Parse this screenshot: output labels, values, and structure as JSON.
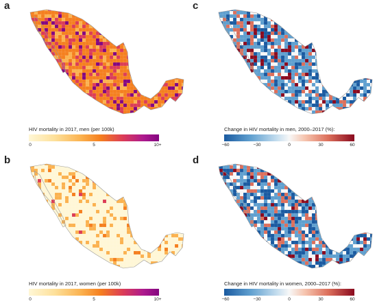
{
  "panels": [
    {
      "label": "a",
      "legend_title": "HIV mortality in 2017, men (per 100k)",
      "ticks": [
        "0",
        "5",
        "10+"
      ],
      "scale": "sequential",
      "colors": [
        "#fff7d6",
        "#fbb24f",
        "#f57f1f",
        "#dc3d56",
        "#840680"
      ]
    },
    {
      "label": "b",
      "legend_title": "HIV mortality in 2017, women (per 100k)",
      "ticks": [
        "0",
        "5",
        "10+"
      ],
      "scale": "sequential",
      "colors": [
        "#fff7d6",
        "#fbb24f",
        "#f57f1f",
        "#dc3d56",
        "#840680"
      ]
    },
    {
      "label": "c",
      "legend_title": "Change in HIV mortality in men, 2000–2017 (%):",
      "ticks": [
        "−60",
        "−30",
        "0",
        "30",
        "60"
      ],
      "scale": "diverging",
      "colors": [
        "#1a5aa0",
        "#5f9fcf",
        "#f7f7f7",
        "#dc6f5b",
        "#8a0a1f"
      ]
    },
    {
      "label": "d",
      "legend_title": "Change in HIV mortality in women, 2000–2017 (%):",
      "ticks": [
        "−60",
        "−30",
        "0",
        "30",
        "60"
      ],
      "scale": "diverging",
      "colors": [
        "#1a5aa0",
        "#5f9fcf",
        "#f7f7f7",
        "#dc6f5b",
        "#8a0a1f"
      ]
    }
  ]
}
